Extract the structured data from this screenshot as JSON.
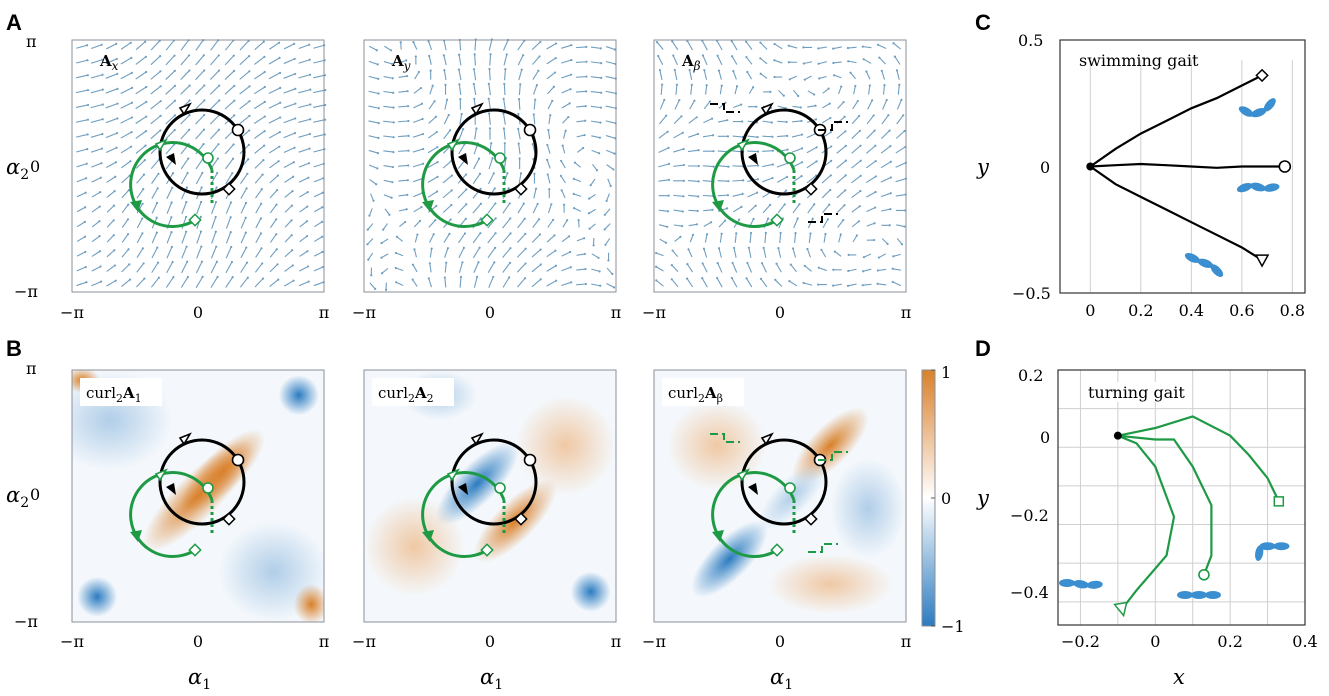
{
  "panels": {
    "A": "A",
    "B": "B",
    "C": "C",
    "D": "D"
  },
  "row_a": {
    "labels": [
      "A_x",
      "A_y",
      "A_β"
    ],
    "label_main": [
      "A",
      "A",
      "A"
    ],
    "label_sub": [
      "x",
      "y",
      "β"
    ]
  },
  "row_b": {
    "label_prefix": "curl",
    "label_sub2": "2",
    "label_main": "A",
    "label_subs": [
      "1",
      "2",
      "β"
    ]
  },
  "square_axes": {
    "ticks_x": [
      "−π",
      "0",
      "π"
    ],
    "ticks_y": [
      "π",
      "0",
      "−π"
    ],
    "xlabel_main": "α",
    "xlabel_sub": "1",
    "ylabel_main": "α",
    "ylabel_sub": "2"
  },
  "colorbar": {
    "ticks": [
      "1",
      "0",
      "−1"
    ],
    "colors": {
      "positive": "#d9802a",
      "negative": "#2b7bc0",
      "zero": "#ffffff"
    }
  },
  "chart_c": {
    "title": "swimming gait",
    "xticks": [
      "0",
      "0.2",
      "0.4",
      "0.6",
      "0.8"
    ],
    "yticks": [
      "0.5",
      "0",
      "−0.5"
    ],
    "ylabel": "y"
  },
  "chart_d": {
    "title": "turning gait",
    "xticks": [
      "−0.2",
      "0",
      "0.2",
      "0.4"
    ],
    "yticks": [
      "0.2",
      "0",
      "−0.2",
      "−0.4"
    ],
    "xlabel": "x",
    "ylabel": "y"
  },
  "colors": {
    "black_gait": "#000000",
    "green_gait": "#1e9a45",
    "arrows": "#6f9ec0",
    "swimmer": "#3b8fd0"
  },
  "chart_data": [
    {
      "type": "line",
      "title": "swimming gait",
      "xlabel": "",
      "ylabel": "y",
      "xlim": [
        -0.12,
        0.85
      ],
      "ylim": [
        -0.5,
        0.5
      ],
      "series": [
        {
          "x": [
            0,
            0.1,
            0.2,
            0.3,
            0.4,
            0.5,
            0.6,
            0.68
          ],
          "y": [
            0,
            0.07,
            0.13,
            0.18,
            0.23,
            0.27,
            0.32,
            0.36
          ],
          "marker_end": "diamond"
        },
        {
          "x": [
            0,
            0.1,
            0.2,
            0.3,
            0.4,
            0.5,
            0.6,
            0.7,
            0.77
          ],
          "y": [
            0,
            0.005,
            0.01,
            0.005,
            0.0,
            -0.005,
            0.0,
            0.0,
            0.0
          ],
          "marker_end": "circle"
        },
        {
          "x": [
            0,
            0.1,
            0.2,
            0.3,
            0.4,
            0.5,
            0.6,
            0.68
          ],
          "y": [
            0,
            -0.07,
            -0.12,
            -0.17,
            -0.22,
            -0.27,
            -0.32,
            -0.37
          ],
          "marker_end": "triangle"
        }
      ]
    },
    {
      "type": "line",
      "title": "turning gait",
      "xlabel": "x",
      "ylabel": "y",
      "xlim": [
        -0.26,
        0.4
      ],
      "ylim": [
        -0.46,
        0.2
      ],
      "series": [
        {
          "x": [
            -0.1,
            0.0,
            0.1,
            0.2,
            0.25,
            0.3,
            0.33
          ],
          "y": [
            0.03,
            0.05,
            0.08,
            0.03,
            -0.02,
            -0.08,
            -0.14
          ],
          "marker_end": "square"
        },
        {
          "x": [
            -0.1,
            0.0,
            0.05,
            0.1,
            0.15,
            0.15,
            0.13
          ],
          "y": [
            0.03,
            0.02,
            0.02,
            -0.05,
            -0.15,
            -0.28,
            -0.33
          ],
          "marker_end": "circle"
        },
        {
          "x": [
            -0.1,
            -0.05,
            0.0,
            0.05,
            0.03,
            -0.05,
            -0.09
          ],
          "y": [
            0.03,
            0.01,
            -0.05,
            -0.18,
            -0.28,
            -0.37,
            -0.42
          ],
          "marker_end": "triangle"
        }
      ]
    }
  ]
}
